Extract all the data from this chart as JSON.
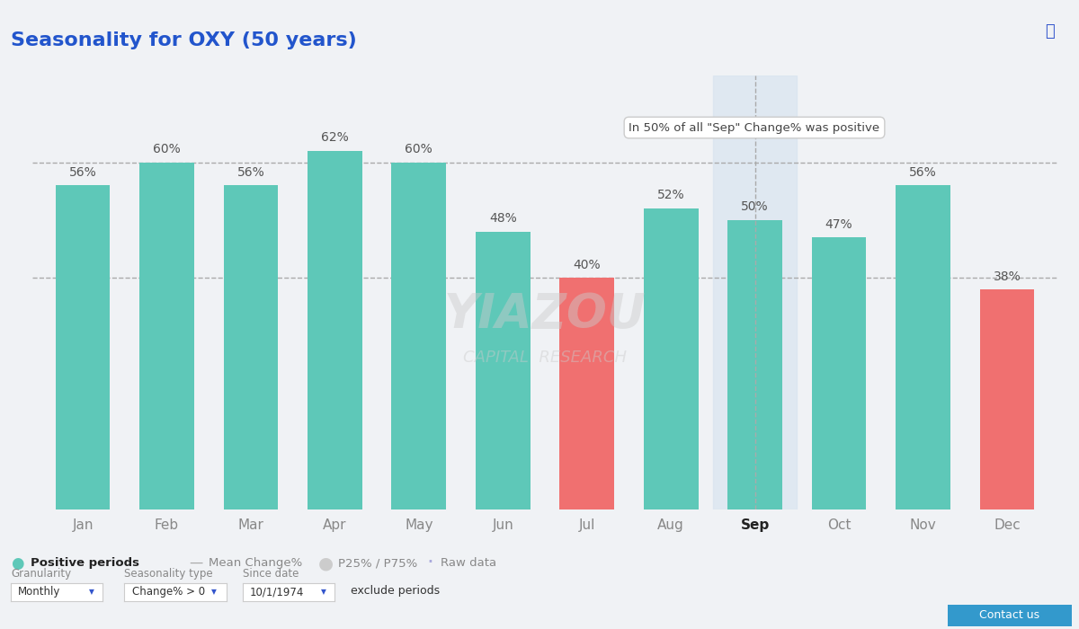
{
  "title": "Seasonality for OXY (50 years)",
  "months": [
    "Jan",
    "Feb",
    "Mar",
    "Apr",
    "May",
    "Jun",
    "Jul",
    "Aug",
    "Sep",
    "Oct",
    "Nov",
    "Dec"
  ],
  "values": [
    56,
    60,
    56,
    62,
    60,
    48,
    40,
    52,
    50,
    47,
    56,
    38
  ],
  "bar_colors": [
    "#5ec8b8",
    "#5ec8b8",
    "#5ec8b8",
    "#5ec8b8",
    "#5ec8b8",
    "#5ec8b8",
    "#f07070",
    "#5ec8b8",
    "#5ec8b8",
    "#5ec8b8",
    "#5ec8b8",
    "#f07070"
  ],
  "background_color": "#f0f2f5",
  "plot_bg_color": "#f0f2f5",
  "title_color": "#2255cc",
  "title_fontsize": 16,
  "axis_label_color": "#888888",
  "bar_label_color": "#555555",
  "dashed_line_values": [
    60,
    40
  ],
  "dashed_line_color": "#aaaaaa",
  "tooltip_month_idx": 8,
  "tooltip_text": "In 50% of all \"Sep\" Change% was positive",
  "sep_highlight_color": "#d8e4f0",
  "legend_items": [
    "Positive periods",
    "Mean Change%",
    "P25% / P75%",
    "Raw data"
  ],
  "legend_colors": [
    "#5ec8b8",
    "#aaaaaa",
    "#cccccc",
    "#aaaadd"
  ],
  "watermark_text1": "YIAZOU",
  "watermark_text2": "CAPITAL  RESEARCH",
  "footer_labels": [
    "Granularity",
    "Seasonality type",
    "Since date"
  ],
  "footer_values": [
    "Monthly",
    "Change% > 0",
    "10/1/1974"
  ],
  "footer_extra": "exclude periods"
}
